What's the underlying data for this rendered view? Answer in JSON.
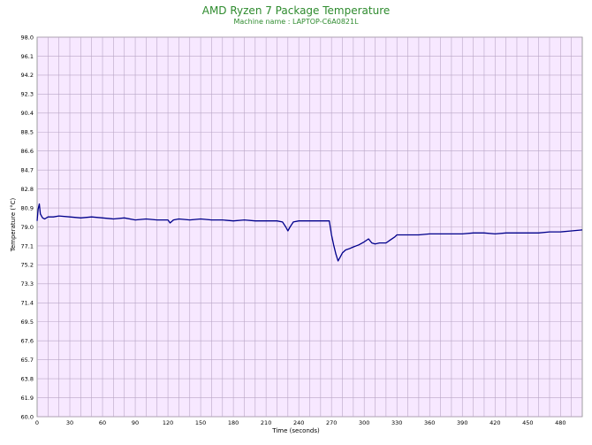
{
  "chart_data": {
    "type": "line",
    "title": "AMD Ryzen 7 Package Temperature",
    "subtitle": "Machine name : LAPTOP-C6A0821L",
    "xlabel": "Time (seconds)",
    "ylabel": "Temperature (°C)",
    "xlim": [
      0,
      500
    ],
    "ylim": [
      60.0,
      98.0
    ],
    "x_ticks": [
      0,
      30,
      60,
      90,
      120,
      150,
      180,
      210,
      240,
      270,
      300,
      330,
      360,
      390,
      420,
      450,
      480
    ],
    "y_ticks": [
      "98.0",
      "96.1",
      "94.2",
      "92.3",
      "90.4",
      "88.5",
      "86.6",
      "84.7",
      "82.8",
      "80.9",
      "79.0",
      "77.1",
      "75.2",
      "73.3",
      "71.4",
      "69.5",
      "67.6",
      "65.7",
      "63.8",
      "61.9",
      "60.0"
    ],
    "grid": true,
    "colors": {
      "line": "#00008b",
      "background": "#f7e8ff",
      "grid": "#b9a6c6"
    },
    "series": [
      {
        "x": [
          0,
          1,
          2,
          3,
          4,
          5,
          7,
          10,
          15,
          20,
          30,
          40,
          50,
          60,
          70,
          80,
          90,
          100,
          110,
          120,
          122,
          125,
          130,
          140,
          150,
          160,
          170,
          180,
          190,
          200,
          210,
          220,
          225,
          228,
          230,
          232,
          235,
          240,
          250,
          260,
          268,
          270,
          272,
          274,
          276,
          278,
          280,
          283,
          286,
          290,
          295,
          300,
          304,
          307,
          310,
          314,
          320,
          324,
          328,
          330,
          340,
          350,
          360,
          370,
          380,
          390,
          400,
          410,
          420,
          430,
          440,
          450,
          460,
          470,
          480,
          490,
          500
        ],
        "y": [
          79.6,
          80.8,
          81.3,
          80.3,
          80.1,
          79.9,
          79.8,
          80.0,
          80.0,
          80.1,
          80.0,
          79.9,
          80.0,
          79.9,
          79.8,
          79.9,
          79.7,
          79.8,
          79.7,
          79.7,
          79.4,
          79.7,
          79.8,
          79.7,
          79.8,
          79.7,
          79.7,
          79.6,
          79.7,
          79.6,
          79.6,
          79.6,
          79.5,
          79.0,
          78.6,
          79.0,
          79.5,
          79.6,
          79.6,
          79.6,
          79.6,
          78.2,
          77.2,
          76.3,
          75.6,
          76.0,
          76.4,
          76.7,
          76.8,
          77.0,
          77.2,
          77.5,
          77.8,
          77.4,
          77.3,
          77.4,
          77.4,
          77.7,
          78.0,
          78.2,
          78.2,
          78.2,
          78.3,
          78.3,
          78.3,
          78.3,
          78.4,
          78.4,
          78.3,
          78.4,
          78.4,
          78.4,
          78.4,
          78.5,
          78.5,
          78.6,
          78.7
        ]
      }
    ]
  }
}
